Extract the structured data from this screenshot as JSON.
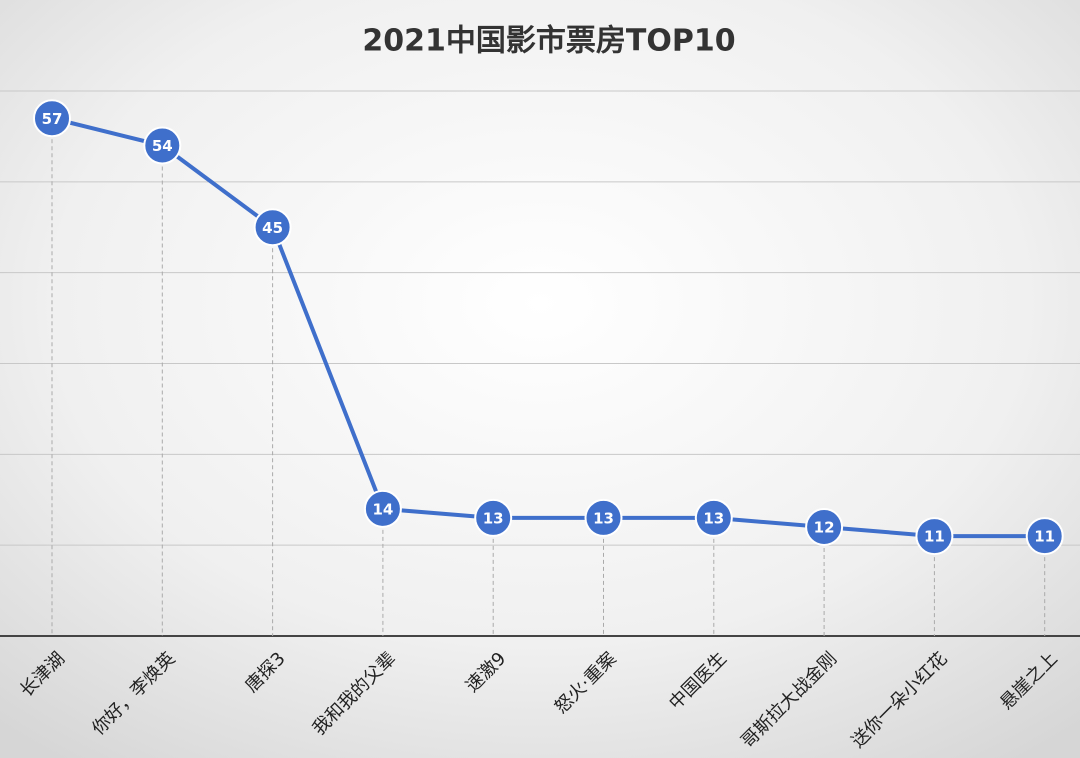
{
  "chart_data": {
    "type": "line",
    "title": "2021中国影市票房TOP10",
    "categories": [
      "长津湖",
      "你好，李焕英",
      "唐探3",
      "我和我的父辈",
      "速激9",
      "怒火·重案",
      "中国医生",
      "哥斯拉大战金刚",
      "送你一朵小红花",
      "悬崖之上"
    ],
    "values": [
      57,
      54,
      45,
      14,
      13,
      13,
      13,
      12,
      11,
      11
    ],
    "color": "#3f6fcb",
    "ylim": [
      0,
      60
    ],
    "yticks": [
      0,
      10,
      20,
      30,
      40,
      50,
      60
    ],
    "grid": true
  }
}
